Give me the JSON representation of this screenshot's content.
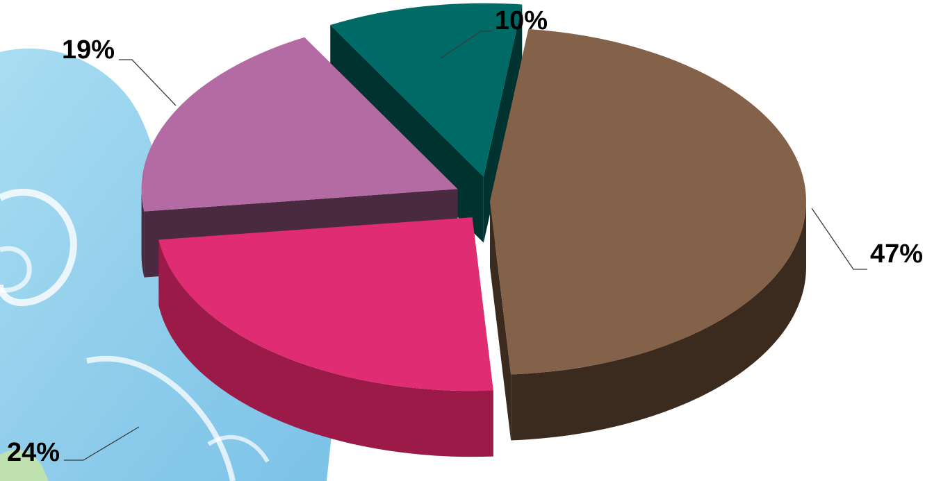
{
  "chart_data": {
    "type": "pie",
    "style": "3d-exploded",
    "slices": [
      {
        "value": 47,
        "label": "47%",
        "color": "#846149",
        "side_color": "#3b2a1e"
      },
      {
        "value": 24,
        "label": "24%",
        "color": "#e02c72",
        "side_color": "#9c1a48"
      },
      {
        "value": 19,
        "label": "19%",
        "color": "#b46ba3",
        "side_color": "#4a2a40"
      },
      {
        "value": 10,
        "label": "10%",
        "color": "#006b66",
        "side_color": "#003330"
      }
    ],
    "legend": "none",
    "background": "decorative-swirl"
  }
}
